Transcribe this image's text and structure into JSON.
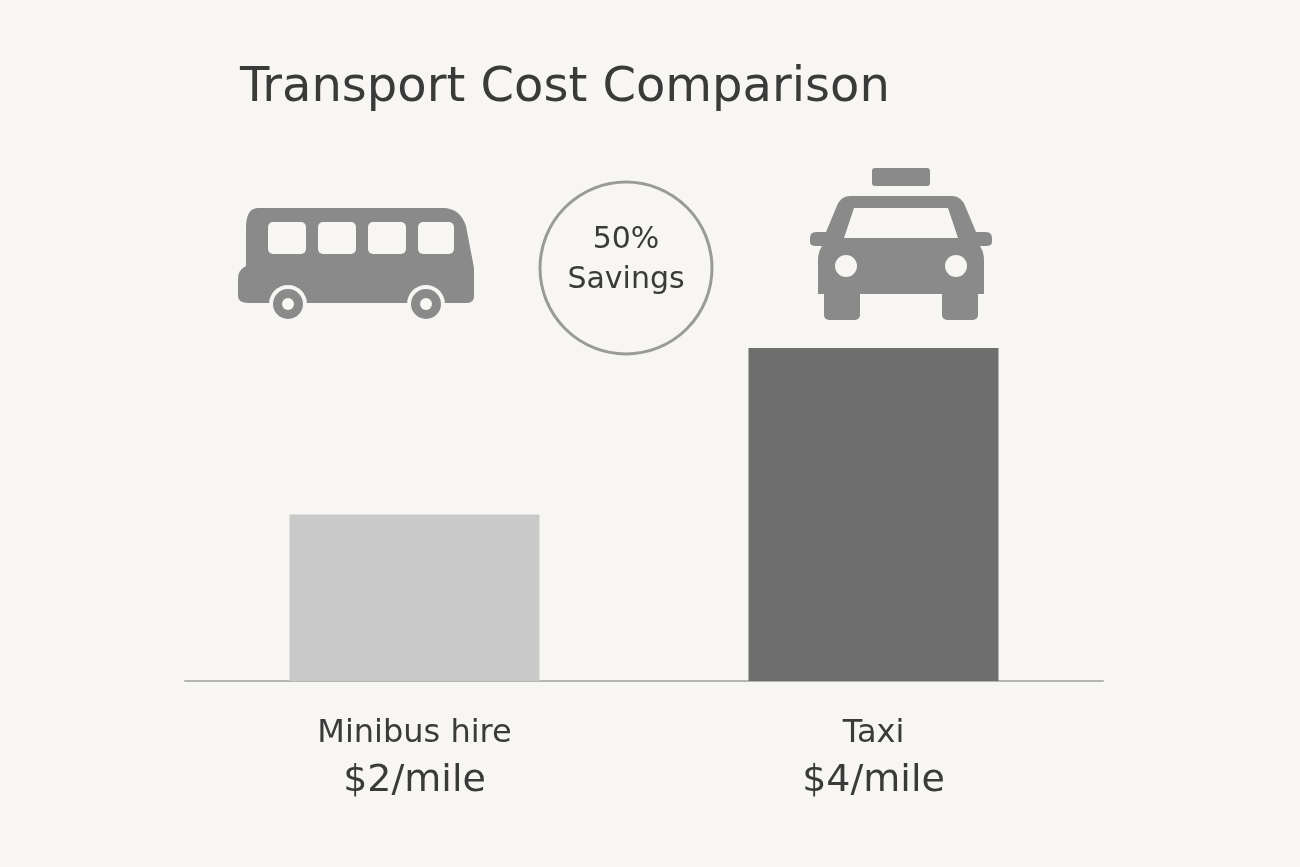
{
  "chart_data": {
    "type": "bar",
    "title": "Transport Cost Comparison",
    "categories": [
      "Minibus hire",
      "Taxi"
    ],
    "values": [
      2,
      4
    ],
    "colors": [
      "#c9c9c9",
      "#6e6e6e"
    ],
    "value_labels": [
      "$2/mile",
      "$4/mile"
    ],
    "annotations": [
      "50% Savings"
    ]
  }
}
